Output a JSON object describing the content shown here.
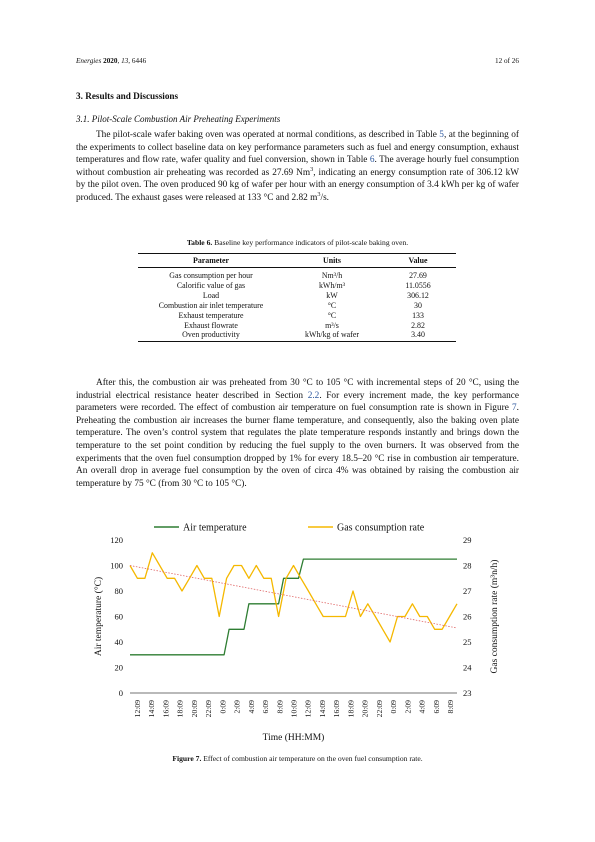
{
  "header": {
    "journal": "Energies",
    "year": "2020",
    "volume": "13",
    "article": "6446",
    "page": "12 of 26"
  },
  "section_title": "3. Results and Discussions",
  "subsection_title": "3.1. Pilot-Scale Combustion Air Preheating Experiments",
  "paragraph1": {
    "a": "The pilot-scale wafer baking oven was operated at normal conditions, as described in Table ",
    "ref1": "5",
    "b": ", at the beginning of the experiments to collect baseline data on key performance parameters such as fuel and energy consumption, exhaust temperatures and flow rate, wafer quality and fuel conversion, shown in Table ",
    "ref2": "6",
    "c": ". The average hourly fuel consumption without combustion air preheating was recorded as 27.69 Nm",
    "sup1": "3",
    "d": ", indicating an energy consumption rate of 306.12 kW by the pilot oven. The oven produced 90 kg of wafer per hour with an energy consumption of 3.4 kWh per kg of wafer produced. The exhaust gases were released at 133 °C and 2.82 m",
    "sup2": "3",
    "e": "/s."
  },
  "table": {
    "caption_label": "Table 6.",
    "caption_text": " Baseline key performance indicators of pilot-scale baking oven.",
    "headers": [
      "Parameter",
      "Units",
      "Value"
    ],
    "rows": [
      [
        "Gas consumption per hour",
        "Nm³/h",
        "27.69"
      ],
      [
        "Calorific value of gas",
        "kWh/m³",
        "11.0556"
      ],
      [
        "Load",
        "kW",
        "306.12"
      ],
      [
        "Combustion air inlet temperature",
        "°C",
        "30"
      ],
      [
        "Exhaust temperature",
        "°C",
        "133"
      ],
      [
        "Exhaust flowrate",
        "m³/s",
        "2.82"
      ],
      [
        "Oven productivity",
        "kWh/kg of wafer",
        "3.40"
      ]
    ]
  },
  "paragraph2": {
    "a": "After this, the combustion air was preheated from 30 °C to 105 °C with incremental steps of 20 °C, using the industrial electrical resistance heater described in Section ",
    "ref1": "2.2",
    "b": ". For every increment made, the key performance parameters were recorded. The effect of combustion air temperature on fuel consumption rate is shown in Figure ",
    "ref2": "7",
    "c": ". Preheating the combustion air increases the burner flame temperature, and consequently, also the baking oven plate temperature. The oven’s control system that regulates the plate temperature responds instantly and brings down the temperature to the set point condition by reducing the fuel supply to the oven burners. It was observed from the experiments that the oven fuel consumption dropped by 1% for every 18.5–20 °C rise in combustion air temperature. An overall drop in average fuel consumption by the oven of circa 4% was obtained by raising the combustion air temperature by 75 °C (from 30 °C to 105 °C)."
  },
  "figure": {
    "caption_label": "Figure 7.",
    "caption_text": " Effect of combustion air temperature on the oven fuel consumption rate."
  },
  "chart_data": {
    "type": "line",
    "xlabel": "Time (HH:MM)",
    "ylabel": "Air temperature (°C)",
    "y2label": "Gas consumption rate (m³n/h)",
    "ylim": [
      0,
      120
    ],
    "y2lim": [
      23,
      29
    ],
    "yticks": [
      0,
      20,
      40,
      60,
      80,
      100,
      120
    ],
    "y2ticks": [
      23,
      24,
      25,
      26,
      27,
      28,
      29
    ],
    "legend_position": "top",
    "x_tick_labels": [
      "12:09",
      "14:09",
      "16:09",
      "18:09",
      "20:09",
      "22:09",
      "0:09",
      "2:09",
      "4:09",
      "6:09",
      "8:09",
      "10:09",
      "12:09",
      "14:09",
      "16:09",
      "18:09",
      "20:09",
      "22:09",
      "0:09",
      "2:09",
      "4:09",
      "6:09",
      "8:09"
    ],
    "series": [
      {
        "name": "Air temperature",
        "axis": "left",
        "color": "#2e7d32",
        "values": [
          30,
          30,
          30,
          30,
          30,
          30,
          30,
          30,
          30,
          30,
          30,
          30,
          30,
          30,
          30,
          30,
          30,
          30,
          30,
          30,
          50,
          50,
          50,
          50,
          70,
          70,
          70,
          70,
          70,
          70,
          70,
          90,
          90,
          90,
          90,
          105,
          105,
          105,
          105,
          105,
          105,
          105,
          105,
          105,
          105,
          105,
          105,
          105,
          105,
          105,
          105,
          105,
          105,
          105,
          105,
          105,
          105,
          105,
          105,
          105,
          105,
          105,
          105,
          105,
          105,
          105,
          105
        ]
      },
      {
        "name": "Gas consumption rate",
        "axis": "right",
        "color": "#f5b800",
        "values": [
          28,
          27.5,
          27.5,
          28.5,
          28,
          27.5,
          27.5,
          27,
          27.5,
          28,
          27.5,
          27.5,
          26,
          27.5,
          28,
          28,
          27.5,
          28,
          27.5,
          27.5,
          26,
          27.5,
          28,
          27.5,
          27,
          26.5,
          26,
          26,
          26,
          26,
          27,
          26,
          26.5,
          26,
          25.5,
          25,
          26,
          26,
          26.5,
          26,
          26,
          25.5,
          25.5,
          26,
          26.5
        ]
      }
    ],
    "trendline": {
      "series": "Gas consumption rate",
      "from": 28.0,
      "to": 25.55,
      "color": "#e06666",
      "style": "dotted"
    }
  }
}
